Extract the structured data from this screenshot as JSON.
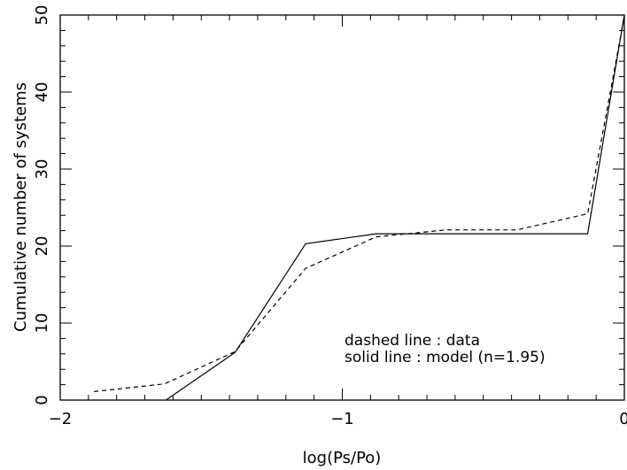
{
  "chart_data": {
    "type": "line",
    "title": "",
    "xlabel": "log(Ps/Po)",
    "ylabel": "Cumulative number of systems",
    "xlim": [
      -2,
      0
    ],
    "ylim": [
      0,
      50
    ],
    "x_ticks": [
      -2,
      -1,
      0
    ],
    "x_tick_labels": [
      "−2",
      "−1",
      "0"
    ],
    "y_ticks": [
      0,
      10,
      20,
      30,
      40,
      50
    ],
    "y_tick_labels": [
      "0",
      "10",
      "20",
      "30",
      "40",
      "50"
    ],
    "grid": false,
    "series": [
      {
        "style": "dashed",
        "x": [
          -1.88,
          -1.63,
          -1.38,
          -1.13,
          -0.88,
          -0.63,
          -0.38,
          -0.13,
          0.0
        ],
        "y": [
          1.1,
          2.1,
          6.3,
          17.1,
          21.2,
          22.1,
          22.1,
          24.2,
          49.8
        ]
      },
      {
        "style": "solid",
        "x": [
          -1.625,
          -1.38,
          -1.13,
          -0.88,
          -0.63,
          -0.38,
          -0.13,
          0.0
        ],
        "y": [
          0.0,
          6.2,
          20.3,
          21.6,
          21.6,
          21.6,
          21.6,
          50.0
        ]
      }
    ],
    "annotations": [
      "dashed line : data",
      "solid line : model (n=1.95)"
    ]
  }
}
